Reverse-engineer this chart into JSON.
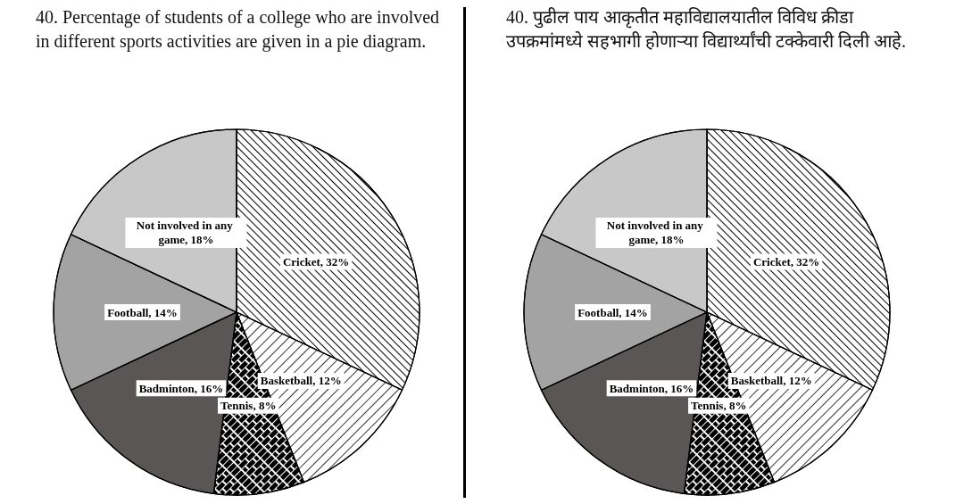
{
  "chart_data": [
    {
      "type": "pie",
      "title": "40. Percentage of students of a college who are involved in different sports activities are given in a pie diagram.",
      "categories": [
        "Cricket",
        "Basketball",
        "Tennis",
        "Badminton",
        "Football",
        "Not involved in any game"
      ],
      "values": [
        32,
        12,
        8,
        16,
        14,
        18
      ],
      "value_labels": [
        "32%",
        "12%",
        "8%",
        "16%",
        "14%",
        "18%"
      ],
      "colors": [
        "#ffffff",
        "#ffffff",
        "#ffffff",
        "#5b5656",
        "#a3a3a3",
        "#c8c8c8"
      ]
    },
    {
      "type": "pie",
      "title": "40. पुढील पाय आकृतीत महाविद्यालयातील विविध क्रीडा उपक्रमांमध्ये सहभागी होणाऱ्या विद्यार्थ्यांची टक्केवारी दिली आहे.",
      "categories": [
        "Cricket",
        "Basketball",
        "Tennis",
        "Badminton",
        "Football",
        "Not involved in any game"
      ],
      "values": [
        32,
        12,
        8,
        16,
        14,
        18
      ],
      "value_labels": [
        "32%",
        "12%",
        "8%",
        "16%",
        "14%",
        "18%"
      ],
      "colors": [
        "#ffffff",
        "#ffffff",
        "#ffffff",
        "#5b5656",
        "#a3a3a3",
        "#c8c8c8"
      ]
    }
  ]
}
